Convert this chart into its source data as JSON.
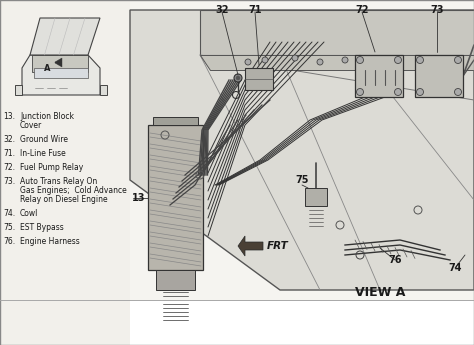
{
  "bg_color": "#f2f0eb",
  "schematic_bg": "#ededea",
  "text_color": "#1a1a1a",
  "line_color": "#2a2a2a",
  "title": "VIEW A",
  "legend": [
    [
      "13.",
      "Junction Block",
      "Cover"
    ],
    [
      "32.",
      "Ground Wire",
      ""
    ],
    [
      "71.",
      "In-Line Fuse",
      ""
    ],
    [
      "72.",
      "Fuel Pump Relay",
      ""
    ],
    [
      "73.",
      "Auto Trans Relay On",
      "Gas Engines;  Cold Advance",
      "Relay on Diesel Engine"
    ],
    [
      "74.",
      "Cowl",
      ""
    ],
    [
      "75.",
      "EST Bypass",
      ""
    ],
    [
      "76.",
      "Engine Harness",
      ""
    ]
  ]
}
